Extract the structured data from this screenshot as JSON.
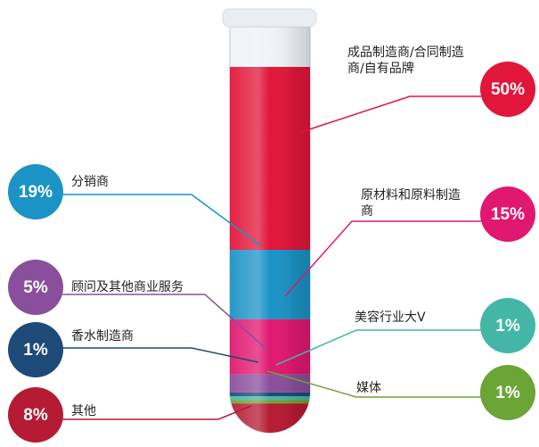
{
  "chart_data": {
    "type": "test-tube",
    "categories": [
      "成品制造商/合同制造商/自有品牌",
      "分销商",
      "原材料和原料制造商",
      "顾问及其他商业服务",
      "香水制造商",
      "美容行业大V",
      "媒体",
      "其他"
    ],
    "values": [
      50,
      19,
      15,
      5,
      1,
      1,
      1,
      8
    ],
    "value_labels": [
      "50%",
      "19%",
      "15%",
      "5%",
      "1%",
      "1%",
      "1%",
      "8%"
    ],
    "colors": [
      "#e2163a",
      "#1b93c6",
      "#e0186f",
      "#8a4f9c",
      "#1d4a78",
      "#43b6a8",
      "#6aa536",
      "#b51b33"
    ]
  }
}
